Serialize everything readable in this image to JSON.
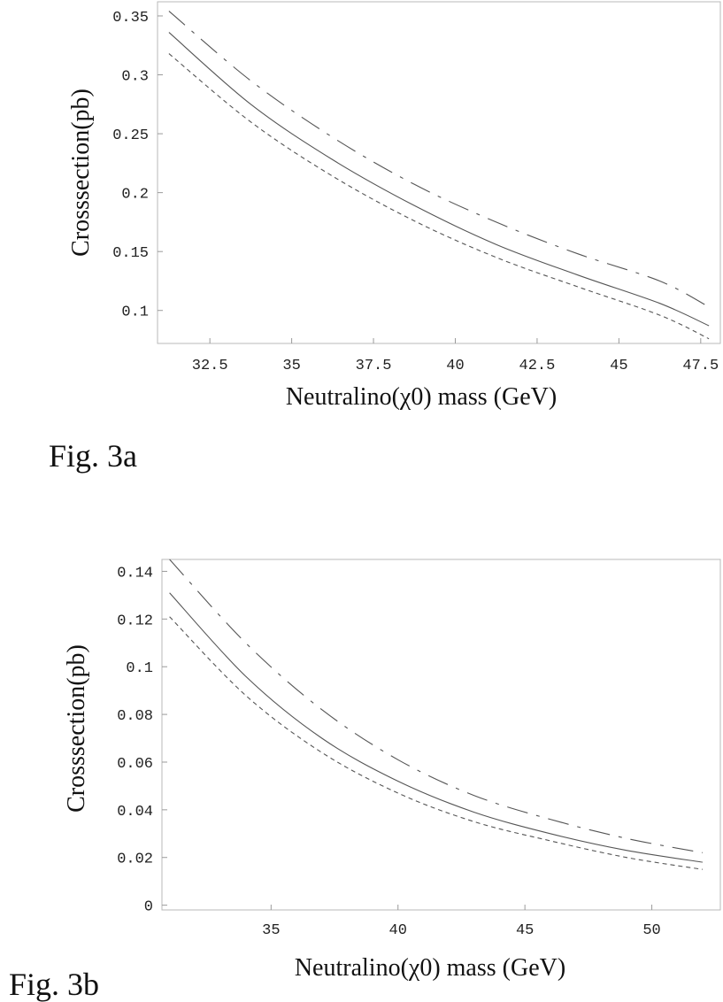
{
  "chart_data": [
    {
      "type": "line",
      "caption": "Fig. 3a",
      "xlabel": "Neutralino(χ0) mass (GeV)",
      "ylabel": "Crosssection(pb)",
      "xlim": [
        30.9,
        48.1
      ],
      "ylim": [
        0.072,
        0.362
      ],
      "xticks": [
        32.5,
        35,
        37.5,
        40,
        42.5,
        45,
        47.5
      ],
      "xtick_labels": [
        "32.5",
        "35",
        "37.5",
        "40",
        "42.5",
        "45",
        "47.5"
      ],
      "yticks": [
        0.1,
        0.15,
        0.2,
        0.25,
        0.3,
        0.35
      ],
      "ytick_labels": [
        "0.1",
        "0.15",
        "0.2",
        "0.25",
        "0.3",
        "0.35"
      ],
      "series": [
        {
          "name": "long-dash",
          "style": "dashdot",
          "x": [
            31.25,
            33.75,
            36.25,
            38.75,
            41.25,
            43.75,
            46.25,
            47.75
          ],
          "values": [
            0.354,
            0.295,
            0.247,
            0.207,
            0.175,
            0.148,
            0.125,
            0.103
          ]
        },
        {
          "name": "solid",
          "style": "solid",
          "x": [
            31.25,
            33.75,
            36.25,
            38.75,
            41.25,
            43.75,
            46.25,
            47.75
          ],
          "values": [
            0.336,
            0.275,
            0.228,
            0.189,
            0.156,
            0.13,
            0.106,
            0.087
          ]
        },
        {
          "name": "short-dash",
          "style": "dashed",
          "x": [
            31.25,
            33.75,
            36.25,
            38.75,
            41.25,
            43.75,
            46.25,
            47.75
          ],
          "values": [
            0.318,
            0.26,
            0.214,
            0.176,
            0.145,
            0.12,
            0.096,
            0.076
          ]
        }
      ]
    },
    {
      "type": "line",
      "caption": "Fig. 3b",
      "xlabel": "Neutralino(χ0) mass (GeV)",
      "ylabel": "Crosssection(pb)",
      "xlim": [
        30.7,
        52.7
      ],
      "ylim": [
        -0.002,
        0.145
      ],
      "xticks": [
        35,
        40,
        45,
        50
      ],
      "xtick_labels": [
        "35",
        "40",
        "45",
        "50"
      ],
      "yticks": [
        0,
        0.02,
        0.04,
        0.06,
        0.08,
        0.1,
        0.12,
        0.14
      ],
      "ytick_labels": [
        "0",
        "0.02",
        "0.04",
        "0.06",
        "0.08",
        "0.1",
        "0.12",
        "0.14"
      ],
      "series": [
        {
          "name": "long-dash",
          "style": "dashdot",
          "x": [
            31,
            34,
            37,
            40,
            43,
            46,
            49,
            52
          ],
          "values": [
            0.145,
            0.11,
            0.082,
            0.061,
            0.046,
            0.036,
            0.028,
            0.022
          ]
        },
        {
          "name": "solid",
          "style": "solid",
          "x": [
            31,
            34,
            37,
            40,
            43,
            46,
            49,
            52
          ],
          "values": [
            0.131,
            0.096,
            0.07,
            0.052,
            0.039,
            0.03,
            0.023,
            0.018
          ]
        },
        {
          "name": "short-dash",
          "style": "dashed",
          "x": [
            31,
            34,
            37,
            40,
            43,
            46,
            49,
            52
          ],
          "values": [
            0.121,
            0.088,
            0.064,
            0.047,
            0.035,
            0.027,
            0.02,
            0.015
          ]
        }
      ]
    }
  ]
}
